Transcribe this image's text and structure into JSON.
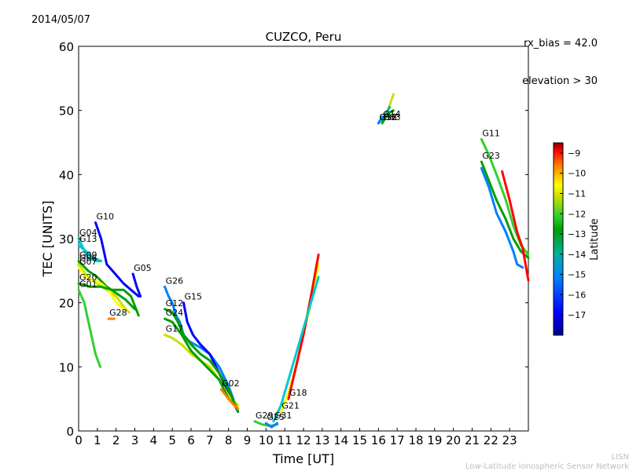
{
  "header": {
    "date": "2014/05/07",
    "rx_bias": "rx_bias = 42.0",
    "elevation": "elevation > 30"
  },
  "footer": {
    "line1": "LISN",
    "line2": "Low-Latitude Ionospheric Sensor Network"
  },
  "colors": {
    "ramp": [
      "#00008f",
      "#0000ff",
      "#0080ff",
      "#00c8d0",
      "#00b0a0",
      "#00a000",
      "#30d030",
      "#c8e000",
      "#ffff00",
      "#ff8000",
      "#ff0000",
      "#800000"
    ]
  },
  "chart_data": {
    "type": "line",
    "title": "CUZCO, Peru",
    "xlabel": "Time [UT]",
    "ylabel": "TEC [UNITS]",
    "xlim": [
      0,
      24
    ],
    "ylim": [
      0,
      60
    ],
    "xticks": [
      "0",
      "1",
      "2",
      "3",
      "4",
      "5",
      "6",
      "7",
      "8",
      "9",
      "10",
      "11",
      "12",
      "13",
      "14",
      "15",
      "16",
      "17",
      "18",
      "19",
      "20",
      "21",
      "22",
      "23"
    ],
    "yticks": [
      0,
      10,
      20,
      30,
      40,
      50,
      60
    ],
    "colorbar": {
      "label": "Latitude",
      "range": [
        -18,
        -8.5
      ],
      "ticks": [
        "-9",
        "-10",
        "-11",
        "-12",
        "-13",
        "-14",
        "-15",
        "-16",
        "-17"
      ]
    },
    "series": [
      {
        "name": "G01",
        "lat": -13.0,
        "points": [
          [
            0.0,
            22
          ],
          [
            0.3,
            20
          ],
          [
            0.6,
            16
          ],
          [
            0.9,
            12
          ],
          [
            1.15,
            10
          ]
        ]
      },
      {
        "name": "G10",
        "lat": -16.8,
        "points": [
          [
            0.9,
            32.5
          ],
          [
            1.2,
            30
          ],
          [
            1.5,
            26
          ],
          [
            1.8,
            25
          ],
          [
            2.1,
            24
          ],
          [
            2.4,
            23
          ],
          [
            2.8,
            22
          ],
          [
            3.2,
            21
          ]
        ]
      },
      {
        "name": "G04",
        "lat": -15.5,
        "points": [
          [
            0.0,
            30
          ],
          [
            0.5,
            27
          ],
          [
            1.0,
            26.5
          ],
          [
            1.2,
            26.5
          ]
        ]
      },
      {
        "name": "G13",
        "lat": -15.5,
        "points": [
          [
            0.0,
            29
          ],
          [
            0.4,
            28
          ],
          [
            0.8,
            27
          ],
          [
            1.2,
            26.5
          ]
        ]
      },
      {
        "name": "G09",
        "lat": -13.5,
        "points": [
          [
            0.0,
            26.5
          ],
          [
            0.5,
            25
          ],
          [
            1.0,
            24
          ],
          [
            1.5,
            22.5
          ],
          [
            2.0,
            21.5
          ],
          [
            2.5,
            20.5
          ],
          [
            3.0,
            19
          ]
        ]
      },
      {
        "name": "G06",
        "lat": -12.0,
        "points": [
          [
            0.0,
            26
          ],
          [
            0.5,
            24
          ],
          [
            1.0,
            23
          ],
          [
            1.5,
            22
          ],
          [
            2.0,
            21
          ],
          [
            2.5,
            19
          ],
          [
            2.7,
            18.5
          ]
        ]
      },
      {
        "name": "G07",
        "lat": -11.0,
        "points": [
          [
            0.0,
            25.5
          ],
          [
            0.4,
            24
          ],
          [
            0.8,
            23.5
          ],
          [
            1.2,
            23
          ],
          [
            1.6,
            22
          ],
          [
            2.0,
            20
          ],
          [
            2.4,
            19
          ]
        ]
      },
      {
        "name": "G20",
        "lat": -13.5,
        "points": [
          [
            0.0,
            23
          ],
          [
            0.6,
            22.5
          ],
          [
            1.2,
            22.5
          ],
          [
            1.8,
            22
          ],
          [
            2.4,
            22
          ],
          [
            2.8,
            21
          ],
          [
            3.2,
            18
          ]
        ]
      },
      {
        "name": "G28",
        "lat": -10.0,
        "points": [
          [
            1.6,
            17.5
          ],
          [
            1.9,
            17.5
          ]
        ]
      },
      {
        "name": "G05",
        "lat": -17.0,
        "points": [
          [
            2.9,
            24.5
          ],
          [
            3.1,
            22.5
          ],
          [
            3.3,
            21
          ]
        ]
      },
      {
        "name": "G26",
        "lat": -16.2,
        "points": [
          [
            4.6,
            22.5
          ],
          [
            4.8,
            21
          ],
          [
            5.0,
            20
          ],
          [
            5.2,
            18
          ],
          [
            5.4,
            17
          ],
          [
            5.6,
            15
          ],
          [
            5.9,
            14
          ],
          [
            6.2,
            13.5
          ],
          [
            6.5,
            13
          ],
          [
            7.0,
            12
          ],
          [
            7.5,
            10
          ],
          [
            8.0,
            7
          ],
          [
            8.5,
            3
          ]
        ]
      },
      {
        "name": "G15",
        "lat": -17.0,
        "points": [
          [
            5.6,
            20
          ],
          [
            5.8,
            17
          ],
          [
            6.1,
            15
          ],
          [
            6.5,
            13.5
          ],
          [
            7.0,
            12
          ],
          [
            7.5,
            9
          ],
          [
            8.0,
            6
          ],
          [
            8.5,
            3
          ]
        ]
      },
      {
        "name": "G17",
        "lat": -12.0,
        "points": [
          [
            4.6,
            15
          ],
          [
            5.0,
            14.5
          ],
          [
            5.5,
            13.5
          ],
          [
            6.0,
            12
          ],
          [
            6.5,
            11
          ],
          [
            7.0,
            10
          ],
          [
            7.5,
            8
          ],
          [
            8.0,
            5.5
          ],
          [
            8.5,
            4
          ]
        ]
      },
      {
        "name": "G12",
        "lat": -14.0,
        "points": [
          [
            4.6,
            19
          ],
          [
            5.0,
            18.5
          ],
          [
            5.3,
            17
          ],
          [
            5.6,
            15
          ],
          [
            6.0,
            13.5
          ],
          [
            6.5,
            12
          ],
          [
            7.0,
            11
          ],
          [
            7.5,
            9
          ],
          [
            8.0,
            6.5
          ],
          [
            8.5,
            3
          ]
        ]
      },
      {
        "name": "G24",
        "lat": -13.5,
        "points": [
          [
            4.6,
            17.5
          ],
          [
            5.0,
            17
          ],
          [
            5.5,
            15
          ],
          [
            6.0,
            12.5
          ],
          [
            6.5,
            11
          ],
          [
            7.0,
            9.5
          ],
          [
            7.5,
            8
          ],
          [
            8.0,
            5
          ],
          [
            8.5,
            3.5
          ]
        ]
      },
      {
        "name": "G02",
        "lat": -10.5,
        "points": [
          [
            7.6,
            6.5
          ],
          [
            8.0,
            5
          ],
          [
            8.3,
            4
          ],
          [
            8.5,
            3.5
          ]
        ]
      },
      {
        "name": "G29",
        "lat": -13.0,
        "points": [
          [
            9.4,
            1.5
          ],
          [
            9.8,
            1
          ],
          [
            10.2,
            0.8
          ],
          [
            10.6,
            1
          ]
        ]
      },
      {
        "name": "G25",
        "lat": -16.5,
        "points": [
          [
            10.0,
            1.2
          ],
          [
            10.3,
            0.6
          ],
          [
            10.6,
            1.2
          ]
        ]
      },
      {
        "name": "G21",
        "lat": -11.0,
        "points": [
          [
            10.8,
            3
          ],
          [
            11.2,
            6
          ],
          [
            11.6,
            10
          ],
          [
            12.0,
            15
          ],
          [
            12.4,
            20
          ],
          [
            12.8,
            26
          ]
        ]
      },
      {
        "name": "G18",
        "lat": -9.0,
        "points": [
          [
            11.2,
            5
          ],
          [
            11.6,
            10
          ],
          [
            12.0,
            15
          ],
          [
            12.4,
            21
          ],
          [
            12.8,
            27.5
          ]
        ]
      },
      {
        "name": "G31",
        "lat": -15.5,
        "points": [
          [
            10.4,
            1.5
          ],
          [
            10.8,
            4
          ],
          [
            11.2,
            8
          ],
          [
            11.6,
            12
          ],
          [
            12.0,
            16
          ],
          [
            12.4,
            20
          ],
          [
            12.8,
            24
          ]
        ]
      },
      {
        "name": "G14",
        "lat": -12.0,
        "points": [
          [
            16.2,
            48.5
          ],
          [
            16.5,
            50
          ],
          [
            16.8,
            52.5
          ]
        ]
      },
      {
        "name": "G32",
        "lat": -14.5,
        "points": [
          [
            16.0,
            48
          ],
          [
            16.3,
            49
          ],
          [
            16.6,
            50.5
          ]
        ]
      },
      {
        "name": "G03",
        "lat": -14.0,
        "points": [
          [
            16.2,
            48
          ],
          [
            16.5,
            49.5
          ],
          [
            16.8,
            50
          ]
        ]
      },
      {
        "name": "G16",
        "lat": -16.5,
        "points": [
          [
            16.0,
            48
          ],
          [
            16.2,
            49
          ]
        ]
      },
      {
        "name": "G11",
        "lat": -13.0,
        "points": [
          [
            21.5,
            45.5
          ],
          [
            21.9,
            43
          ],
          [
            22.3,
            40
          ],
          [
            22.8,
            36
          ],
          [
            23.2,
            32
          ],
          [
            23.6,
            29
          ],
          [
            24.0,
            27.5
          ]
        ]
      },
      {
        "name": "G23",
        "lat": -14.0,
        "points": [
          [
            21.5,
            42
          ],
          [
            21.9,
            39
          ],
          [
            22.3,
            36
          ],
          [
            22.8,
            33
          ],
          [
            23.2,
            30
          ],
          [
            23.6,
            28
          ],
          [
            24.0,
            27
          ]
        ]
      },
      {
        "name": "",
        "lat": -16.5,
        "points": [
          [
            21.5,
            41
          ],
          [
            21.9,
            38
          ],
          [
            22.3,
            34
          ],
          [
            22.8,
            31
          ],
          [
            23.2,
            28
          ],
          [
            23.4,
            26
          ],
          [
            23.7,
            25.5
          ]
        ]
      },
      {
        "name": "",
        "lat": -9.0,
        "points": [
          [
            22.6,
            40.5
          ],
          [
            23.0,
            36
          ],
          [
            23.4,
            31
          ],
          [
            23.7,
            28.5
          ],
          [
            24.0,
            23.5
          ]
        ]
      }
    ]
  }
}
